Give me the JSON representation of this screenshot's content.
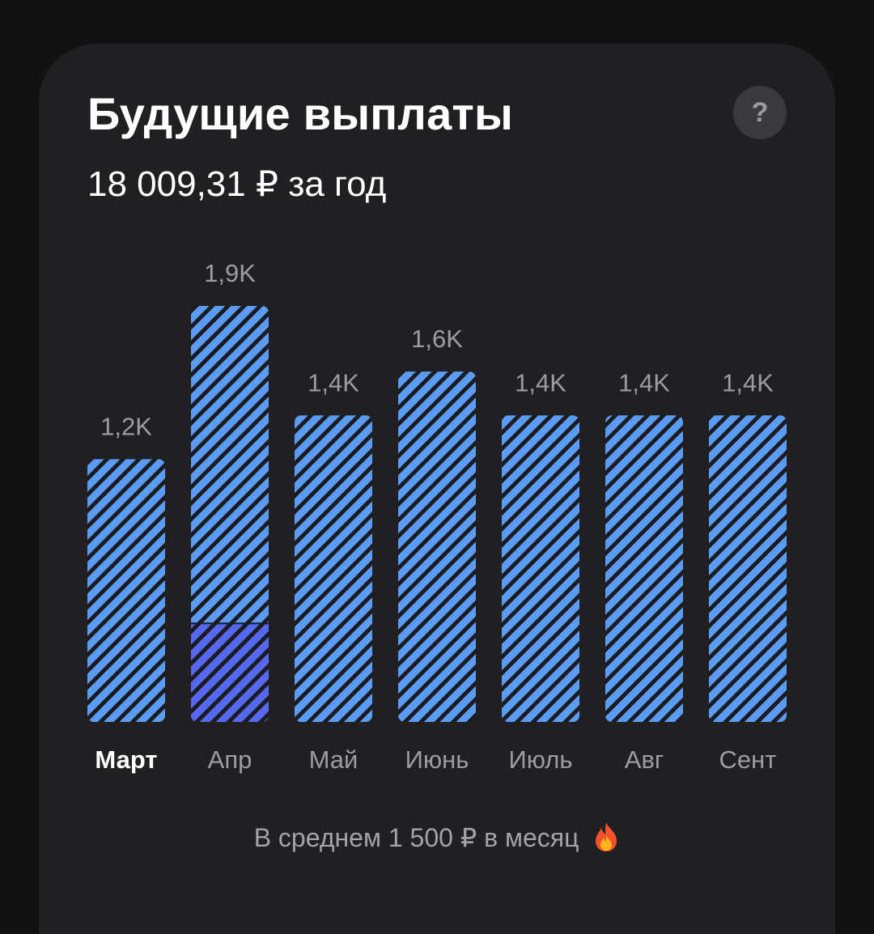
{
  "header": {
    "title": "Будущие выплаты",
    "subtitle": "18 009,31 ₽ за год",
    "help_label": "?"
  },
  "footer": {
    "average_text": "В среднем 1 500 ₽ в месяц",
    "emoji_icon": "fire-icon"
  },
  "colors": {
    "bar_light": "#5b9cf2",
    "bar_accent": "#5568ee",
    "stripe": "#1b1b22",
    "label_active": "#ffffff",
    "label_inactive": "#9c9ca2"
  },
  "chart_data": {
    "type": "bar",
    "categories": [
      "Март",
      "Апр",
      "Май",
      "Июнь",
      "Июль",
      "Авг",
      "Сент"
    ],
    "value_labels": [
      "1,2K",
      "1,9K",
      "1,4K",
      "1,6K",
      "1,4K",
      "1,4K",
      "1,4K"
    ],
    "values": [
      1200,
      1900,
      1400,
      1600,
      1400,
      1400,
      1400
    ],
    "accent_segment": {
      "category": "Апр",
      "value": 450
    },
    "active_category": "Март",
    "ylim": [
      0,
      1900
    ],
    "grid": false
  }
}
